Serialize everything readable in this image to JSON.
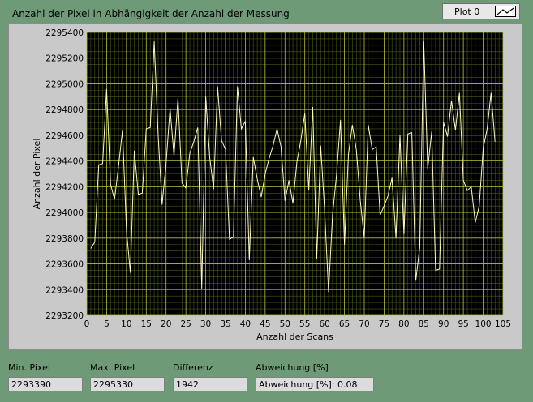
{
  "window": {
    "title": "Anzahl der Pixel in Abhängigkeit der Anzahl der Messung"
  },
  "legend": {
    "label": "Plot 0",
    "icon": "line-style-icon"
  },
  "indicators": [
    {
      "label": "Min. Pixel",
      "value": "2293390"
    },
    {
      "label": "Max. Pixel",
      "value": "2295330"
    },
    {
      "label": "Differenz",
      "value": "1942"
    },
    {
      "label": "Abweichung [%]",
      "value": "Abweichung [%]: 0.08"
    }
  ],
  "colors": {
    "plot_bg": "#000000",
    "grid_major": "#b8c23a",
    "grid_minor": "#4a5a1a",
    "trace": "#fffbc0",
    "panel": "#c9c9c9",
    "background": "#6f9a78"
  },
  "chart_data": {
    "type": "line",
    "xlabel": "Anzahl der Scans",
    "ylabel": "Anzahl der Pixel",
    "xlim": [
      0,
      105
    ],
    "ylim": [
      2293200,
      2295400
    ],
    "xticks": [
      "0",
      "5",
      "10",
      "15",
      "20",
      "25",
      "30",
      "35",
      "40",
      "45",
      "50",
      "55",
      "60",
      "65",
      "70",
      "75",
      "80",
      "85",
      "90",
      "95",
      "100",
      "105"
    ],
    "yticks": [
      "2293200",
      "2293400",
      "2293600",
      "2293800",
      "2294000",
      "2294200",
      "2294400",
      "2294600",
      "2294800",
      "2295000",
      "2295200",
      "2295400"
    ],
    "grid": true,
    "series": [
      {
        "x": [
          1,
          2,
          3,
          4,
          5,
          6,
          7,
          8,
          9,
          10,
          11,
          12,
          13,
          14,
          15,
          16,
          17,
          18,
          19,
          20,
          21,
          22,
          23,
          24,
          25,
          26,
          27,
          28,
          29,
          30,
          31,
          32,
          33,
          34,
          35,
          36,
          37,
          38,
          39,
          40,
          41,
          42,
          43,
          44,
          45,
          46,
          47,
          48,
          49,
          50,
          51,
          52,
          53,
          54,
          55,
          56,
          57,
          58,
          59,
          60,
          61,
          62,
          63,
          64,
          65,
          66,
          67,
          68,
          69,
          70,
          71,
          72,
          73,
          74,
          75,
          76,
          77,
          78,
          79,
          80,
          81,
          82,
          83,
          84,
          85,
          86,
          87,
          88,
          89,
          90,
          91,
          92,
          93,
          94,
          95,
          96,
          97,
          98,
          99,
          100,
          101,
          102,
          103
        ],
        "y": [
          2293720,
          2293770,
          2294370,
          2294380,
          2294960,
          2294220,
          2294100,
          2294360,
          2294640,
          2293860,
          2293530,
          2294480,
          2294140,
          2294150,
          2294650,
          2294660,
          2295330,
          2294610,
          2294060,
          2294380,
          2294810,
          2294440,
          2294890,
          2294230,
          2294190,
          2294460,
          2294550,
          2294660,
          2293410,
          2294900,
          2294430,
          2294180,
          2294980,
          2294560,
          2294490,
          2293790,
          2293810,
          2294980,
          2294650,
          2294710,
          2293630,
          2294430,
          2294260,
          2294120,
          2294300,
          2294420,
          2294520,
          2294650,
          2294510,
          2294090,
          2294250,
          2294070,
          2294390,
          2294560,
          2294770,
          2294170,
          2294820,
          2293640,
          2294520,
          2294020,
          2293380,
          2293980,
          2294290,
          2294720,
          2293750,
          2294450,
          2294680,
          2294490,
          2294090,
          2293800,
          2294680,
          2294490,
          2294510,
          2293980,
          2294050,
          2294130,
          2294270,
          2293800,
          2294600,
          2293830,
          2294610,
          2294620,
          2293470,
          2293730,
          2295330,
          2294340,
          2294630,
          2293550,
          2293560,
          2294700,
          2294590,
          2294870,
          2294640,
          2294930,
          2294250,
          2294170,
          2294200,
          2293920,
          2294050,
          2294500,
          2294650,
          2294930,
          2294550
        ]
      }
    ]
  }
}
